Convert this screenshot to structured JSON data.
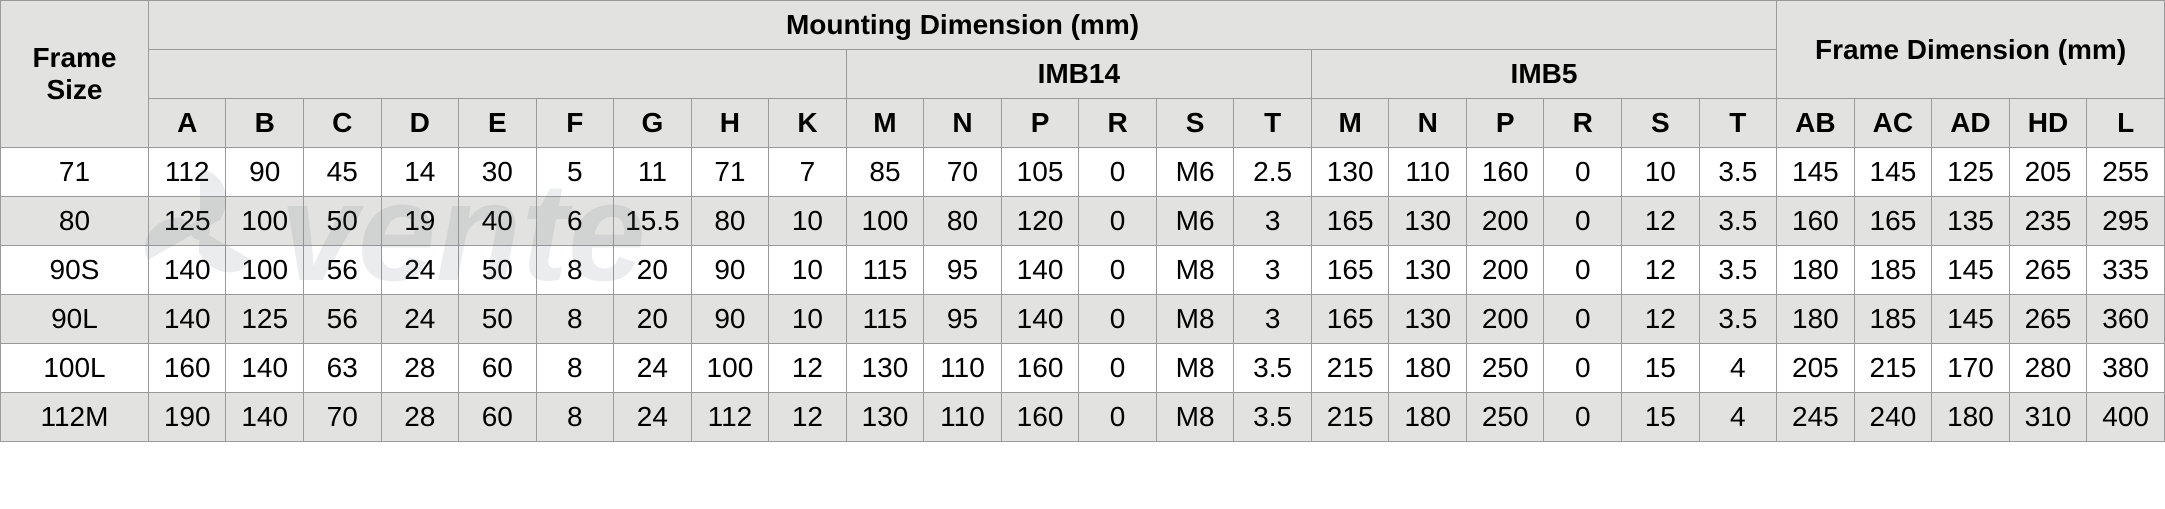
{
  "table": {
    "type": "table",
    "header_bg": "#e2e2e0",
    "border_color": "#9a9a9a",
    "row_even_bg": "#e2e2e0",
    "row_odd_bg": "#ffffff",
    "font_family": "Arial",
    "label_fontsize": 28,
    "frame_size_label": "Frame\nSize",
    "mounting_label": "Mounting Dimension (mm)",
    "frame_dim_label": "Frame Dimension (mm)",
    "imb14_label": "IMB14",
    "imb5_label": "IMB5",
    "sub_headers": {
      "base": [
        "A",
        "B",
        "C",
        "D",
        "E",
        "F",
        "G",
        "H",
        "K"
      ],
      "imb14": [
        "M",
        "N",
        "P",
        "R",
        "S",
        "T"
      ],
      "imb5": [
        "M",
        "N",
        "P",
        "R",
        "S",
        "T"
      ],
      "frame": [
        "AB",
        "AC",
        "AD",
        "HD",
        "L"
      ]
    },
    "rows": [
      {
        "frame": "71",
        "base": [
          "112",
          "90",
          "45",
          "14",
          "30",
          "5",
          "11",
          "71",
          "7"
        ],
        "imb14": [
          "85",
          "70",
          "105",
          "0",
          "M6",
          "2.5"
        ],
        "imb5": [
          "130",
          "110",
          "160",
          "0",
          "10",
          "3.5"
        ],
        "framedim": [
          "145",
          "145",
          "125",
          "205",
          "255"
        ]
      },
      {
        "frame": "80",
        "base": [
          "125",
          "100",
          "50",
          "19",
          "40",
          "6",
          "15.5",
          "80",
          "10"
        ],
        "imb14": [
          "100",
          "80",
          "120",
          "0",
          "M6",
          "3"
        ],
        "imb5": [
          "165",
          "130",
          "200",
          "0",
          "12",
          "3.5"
        ],
        "framedim": [
          "160",
          "165",
          "135",
          "235",
          "295"
        ]
      },
      {
        "frame": "90S",
        "base": [
          "140",
          "100",
          "56",
          "24",
          "50",
          "8",
          "20",
          "90",
          "10"
        ],
        "imb14": [
          "115",
          "95",
          "140",
          "0",
          "M8",
          "3"
        ],
        "imb5": [
          "165",
          "130",
          "200",
          "0",
          "12",
          "3.5"
        ],
        "framedim": [
          "180",
          "185",
          "145",
          "265",
          "335"
        ]
      },
      {
        "frame": "90L",
        "base": [
          "140",
          "125",
          "56",
          "24",
          "50",
          "8",
          "20",
          "90",
          "10"
        ],
        "imb14": [
          "115",
          "95",
          "140",
          "0",
          "M8",
          "3"
        ],
        "imb5": [
          "165",
          "130",
          "200",
          "0",
          "12",
          "3.5"
        ],
        "framedim": [
          "180",
          "185",
          "145",
          "265",
          "360"
        ]
      },
      {
        "frame": "100L",
        "base": [
          "160",
          "140",
          "63",
          "28",
          "60",
          "8",
          "24",
          "100",
          "12"
        ],
        "imb14": [
          "130",
          "110",
          "160",
          "0",
          "M8",
          "3.5"
        ],
        "imb5": [
          "215",
          "180",
          "250",
          "0",
          "15",
          "4"
        ],
        "framedim": [
          "205",
          "215",
          "170",
          "280",
          "380"
        ]
      },
      {
        "frame": "112M",
        "base": [
          "190",
          "140",
          "70",
          "28",
          "60",
          "8",
          "24",
          "112",
          "12"
        ],
        "imb14": [
          "130",
          "110",
          "160",
          "0",
          "M8",
          "3.5"
        ],
        "imb5": [
          "215",
          "180",
          "250",
          "0",
          "15",
          "4"
        ],
        "framedim": [
          "245",
          "240",
          "180",
          "310",
          "400"
        ]
      }
    ]
  },
  "watermark": {
    "text": "ventel",
    "color": "#5b6b72",
    "opacity": 0.12,
    "fontsize": 150,
    "has_fan_icon": true
  }
}
